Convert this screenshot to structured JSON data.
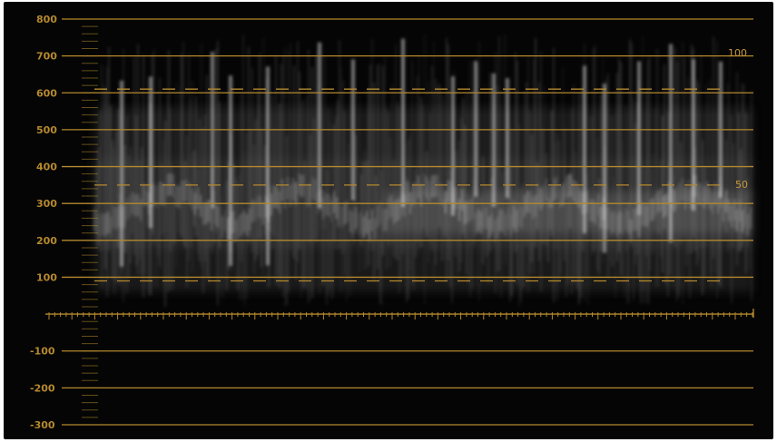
{
  "scope": {
    "type": "waveform",
    "colors": {
      "background": "#050505",
      "graticule": "#b5892e",
      "trace": "#ffffff"
    },
    "scale": {
      "min": -300,
      "max": 800,
      "labels": [
        "800",
        "700",
        "600",
        "500",
        "400",
        "300",
        "200",
        "100",
        "-100",
        "-200",
        "-300"
      ],
      "label_values": [
        800,
        700,
        600,
        500,
        400,
        300,
        200,
        100,
        -100,
        -200,
        -300
      ]
    },
    "solid_lines": [
      800,
      700,
      600,
      500,
      400,
      300,
      200,
      100,
      -100,
      -200,
      -300
    ],
    "dashed_lines": [
      {
        "value": 610,
        "label": "100"
      },
      {
        "value": 350,
        "label": "50"
      },
      {
        "value": 90,
        "label": ""
      }
    ],
    "right_labels": [
      "100",
      "50"
    ],
    "baseline": 0
  }
}
